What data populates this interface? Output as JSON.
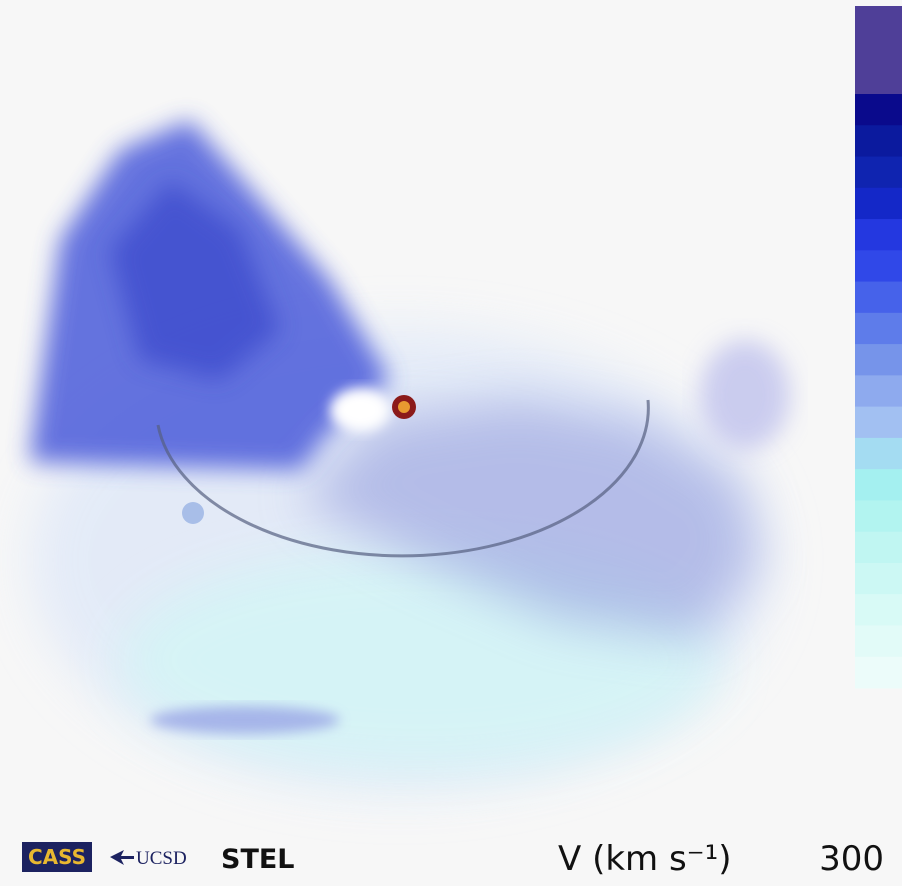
{
  "logos": {
    "cass": "CASS",
    "ucsd": "UCSD",
    "stel": "STEL"
  },
  "legend": {
    "label": "V (km s⁻¹)",
    "value": "300"
  }
}
